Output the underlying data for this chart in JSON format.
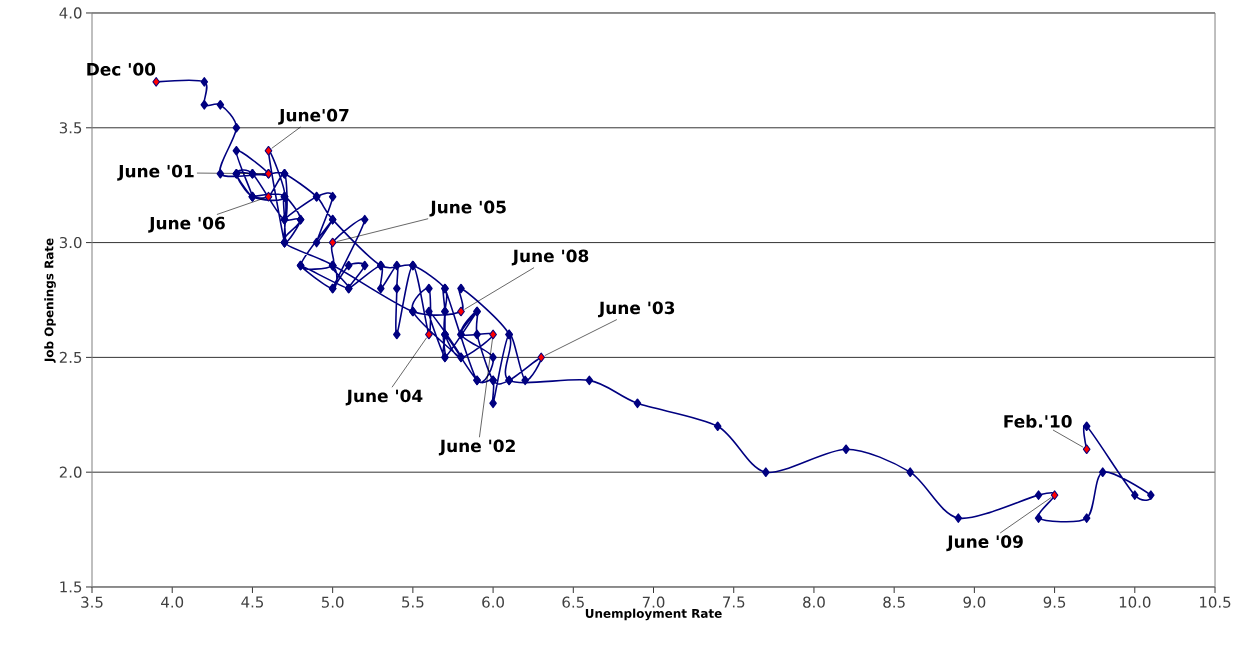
{
  "chart_data": {
    "type": "line",
    "xlabel": "Unemployment Rate",
    "ylabel": "Job Openings Rate",
    "xlim": [
      3.5,
      10.5
    ],
    "ylim": [
      1.5,
      4.0
    ],
    "xticks": [
      {
        "value": 3.5,
        "label": "3.5"
      },
      {
        "value": 4.0,
        "label": "4.0"
      },
      {
        "value": 4.5,
        "label": "4.5"
      },
      {
        "value": 5.0,
        "label": "5.0"
      },
      {
        "value": 5.5,
        "label": "5.5"
      },
      {
        "value": 6.0,
        "label": "6.0"
      },
      {
        "value": 6.5,
        "label": "6.5"
      },
      {
        "value": 7.0,
        "label": "7.0"
      },
      {
        "value": 7.5,
        "label": "7.5"
      },
      {
        "value": 8.0,
        "label": "8.0"
      },
      {
        "value": 8.5,
        "label": "8.5"
      },
      {
        "value": 9.0,
        "label": "9.0"
      },
      {
        "value": 9.5,
        "label": "9.5"
      },
      {
        "value": 10.0,
        "label": "10.0"
      },
      {
        "value": 10.5,
        "label": "10.5"
      }
    ],
    "yticks": [
      {
        "value": 1.5,
        "label": "1.5"
      },
      {
        "value": 2.0,
        "label": "2.0"
      },
      {
        "value": 2.5,
        "label": "2.5"
      },
      {
        "value": 3.0,
        "label": "3.0"
      },
      {
        "value": 3.5,
        "label": "3.5"
      },
      {
        "value": 4.0,
        "label": "4.0"
      }
    ],
    "grid": "y",
    "marker": "diamond",
    "series": [
      {
        "color": "#000080",
        "x": [
          3.9,
          4.2,
          4.2,
          4.3,
          4.4,
          4.3,
          4.6,
          4.7,
          4.9,
          5.0,
          5.3,
          5.5,
          5.7,
          5.7,
          5.7,
          5.7,
          5.9,
          5.8,
          6.0,
          5.8,
          5.7,
          5.7,
          5.7,
          5.9,
          6.0,
          5.8,
          5.9,
          5.9,
          6.0,
          6.1,
          6.3,
          6.2,
          6.1,
          6.0,
          6.0,
          5.9,
          5.7,
          5.7,
          5.6,
          5.8,
          5.5,
          5.6,
          5.6,
          5.5,
          5.4,
          5.4,
          5.4,
          5.3,
          5.3,
          5.1,
          5.2,
          5.1,
          5.0,
          5.2,
          5.0,
          5.0,
          4.8,
          5.0,
          4.9,
          5.0,
          4.9,
          4.7,
          4.8,
          4.7,
          4.7,
          4.5,
          4.6,
          4.7,
          4.7,
          4.5,
          4.4,
          4.5,
          4.4,
          4.6,
          4.5,
          4.4,
          4.5,
          4.7,
          4.6,
          4.7,
          4.7,
          4.7,
          4.8,
          4.7,
          5.0,
          5.0,
          4.8,
          5.1,
          5.0,
          5.5,
          5.8,
          5.8,
          6.1,
          6.1,
          6.6,
          6.9,
          7.4,
          7.7,
          8.2,
          8.6,
          8.9,
          9.4,
          9.5,
          9.4,
          9.7,
          9.8,
          10.1,
          10.0,
          9.7,
          9.7
        ],
        "values": [
          3.7,
          3.7,
          3.6,
          3.6,
          3.5,
          3.3,
          3.3,
          3.3,
          3.2,
          3.1,
          2.9,
          2.9,
          2.8,
          2.7,
          2.6,
          2.5,
          2.7,
          2.6,
          2.6,
          2.5,
          2.6,
          2.7,
          2.8,
          2.4,
          2.5,
          2.6,
          2.7,
          2.6,
          2.4,
          2.4,
          2.5,
          2.4,
          2.6,
          2.3,
          2.4,
          2.4,
          2.6,
          2.5,
          2.7,
          2.5,
          2.7,
          2.8,
          2.6,
          2.9,
          2.6,
          2.8,
          2.9,
          2.8,
          2.9,
          2.8,
          2.9,
          2.9,
          2.8,
          3.1,
          3.0,
          2.9,
          2.9,
          3.1,
          3.0,
          3.2,
          3.2,
          3.1,
          3.1,
          3.0,
          3.2,
          3.2,
          3.2,
          3.3,
          3.1,
          3.3,
          3.3,
          3.2,
          3.4,
          3.3,
          3.3,
          3.3,
          3.2,
          3.2,
          3.4,
          3.0,
          3.1,
          3.2,
          3.1,
          3.0,
          2.9,
          2.8,
          2.9,
          2.8,
          2.9,
          2.7,
          2.7,
          2.8,
          2.6,
          2.4,
          2.4,
          2.3,
          2.2,
          2.0,
          2.1,
          2.0,
          1.8,
          1.9,
          1.9,
          1.8,
          1.8,
          2.0,
          1.9,
          1.9,
          2.2,
          2.1
        ]
      },
      {
        "type": "scatter",
        "color": "#ff0000",
        "x": [
          3.9,
          4.6,
          6.0,
          6.3,
          5.6,
          5.0,
          4.6,
          4.6,
          5.8,
          9.5,
          9.7
        ],
        "values": [
          3.7,
          3.3,
          2.6,
          2.5,
          2.6,
          3.0,
          3.2,
          3.4,
          2.7,
          1.9,
          2.1
        ]
      }
    ],
    "annotations": [
      {
        "text": "Dec '00",
        "x": 3.9,
        "y": 3.7
      },
      {
        "text": "June '01",
        "x": 4.6,
        "y": 3.3
      },
      {
        "text": "June '02",
        "x": 6.0,
        "y": 2.6
      },
      {
        "text": "June '03",
        "x": 6.3,
        "y": 2.5
      },
      {
        "text": "June '04",
        "x": 5.6,
        "y": 2.6
      },
      {
        "text": "June '05",
        "x": 5.0,
        "y": 3.0
      },
      {
        "text": "June '06",
        "x": 4.6,
        "y": 3.2
      },
      {
        "text": "June'07",
        "x": 4.6,
        "y": 3.4
      },
      {
        "text": "June '08",
        "x": 5.8,
        "y": 2.7
      },
      {
        "text": "June '09",
        "x": 9.5,
        "y": 1.9
      },
      {
        "text": "Feb.'10",
        "x": 9.7,
        "y": 2.1
      }
    ]
  }
}
